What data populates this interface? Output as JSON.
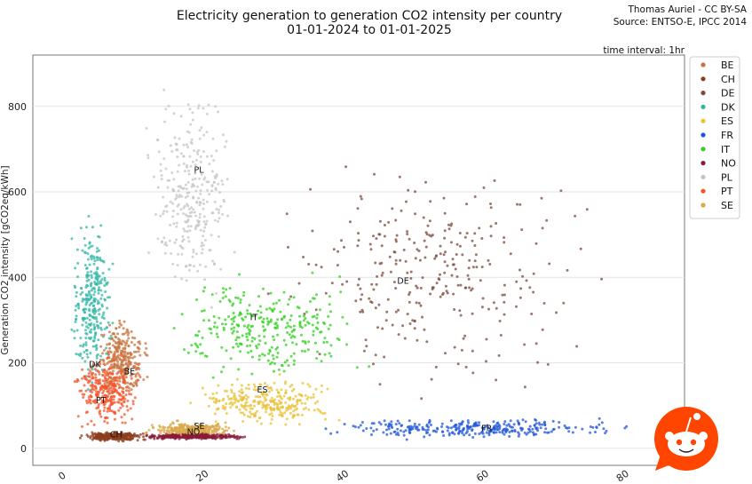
{
  "chart_data": {
    "type": "scatter",
    "title_lines": [
      "Electricity generation to generation CO2 intensity per country",
      "01-01-2024 to 01-01-2025"
    ],
    "credit_lines": [
      "Thomas Auriel - CC BY-SA",
      "Source: ENTSO-E, IPCC 2014"
    ],
    "annotation": "time interval: 1hr",
    "ylabel": "Generation CO2 intensity [gCO2eq/kWh]",
    "xlabel": "",
    "xlim": [
      -4,
      89
    ],
    "ylim": [
      -40,
      920
    ],
    "xticks": [
      0,
      20,
      40,
      60,
      80
    ],
    "yticks": [
      0,
      200,
      400,
      600,
      800
    ],
    "grid": "horizontal",
    "legend_position": "top-right",
    "series": [
      {
        "name": "BE",
        "color": "#c8743f",
        "label_x": 9,
        "label_y": 173,
        "cluster": {
          "x": [
            4.5,
            13
          ],
          "y": [
            100,
            320
          ]
        }
      },
      {
        "name": "CH",
        "color": "#8e3f1f",
        "label_x": 7,
        "label_y": 25,
        "cluster": {
          "x": [
            2,
            13
          ],
          "y": [
            15,
            40
          ]
        }
      },
      {
        "name": "DE",
        "color": "#7b4a3c",
        "label_x": 48,
        "label_y": 385,
        "cluster": {
          "x": [
            26,
            80
          ],
          "y": [
            100,
            720
          ]
        }
      },
      {
        "name": "DK",
        "color": "#33b7a5",
        "label_x": 4,
        "label_y": 190,
        "cluster": {
          "x": [
            1,
            8
          ],
          "y": [
            100,
            580
          ]
        }
      },
      {
        "name": "ES",
        "color": "#e9c23a",
        "label_x": 28,
        "label_y": 130,
        "cluster": {
          "x": [
            17,
            41
          ],
          "y": [
            40,
            180
          ]
        }
      },
      {
        "name": "FR",
        "color": "#1f55d8",
        "label_x": 60,
        "label_y": 40,
        "cluster": {
          "x": [
            34,
            84
          ],
          "y": [
            18,
            75
          ]
        }
      },
      {
        "name": "IT",
        "color": "#2fd21c",
        "label_x": 27,
        "label_y": 300,
        "cluster": {
          "x": [
            13,
            46
          ],
          "y": [
            130,
            430
          ]
        }
      },
      {
        "name": "NO",
        "color": "#8a1b3b",
        "label_x": 18,
        "label_y": 32,
        "cluster": {
          "x": [
            10,
            28
          ],
          "y": [
            20,
            35
          ]
        }
      },
      {
        "name": "PL",
        "color": "#c5c5c5",
        "label_x": 19,
        "label_y": 645,
        "cluster": {
          "x": [
            11,
            26
          ],
          "y": [
            280,
            880
          ]
        }
      },
      {
        "name": "PT",
        "color": "#f4562c",
        "label_x": 5,
        "label_y": 105,
        "cluster": {
          "x": [
            1,
            12
          ],
          "y": [
            30,
            230
          ]
        }
      },
      {
        "name": "SE",
        "color": "#d9a84a",
        "label_x": 19,
        "label_y": 45,
        "cluster": {
          "x": [
            11,
            27
          ],
          "y": [
            20,
            65
          ]
        }
      }
    ]
  }
}
